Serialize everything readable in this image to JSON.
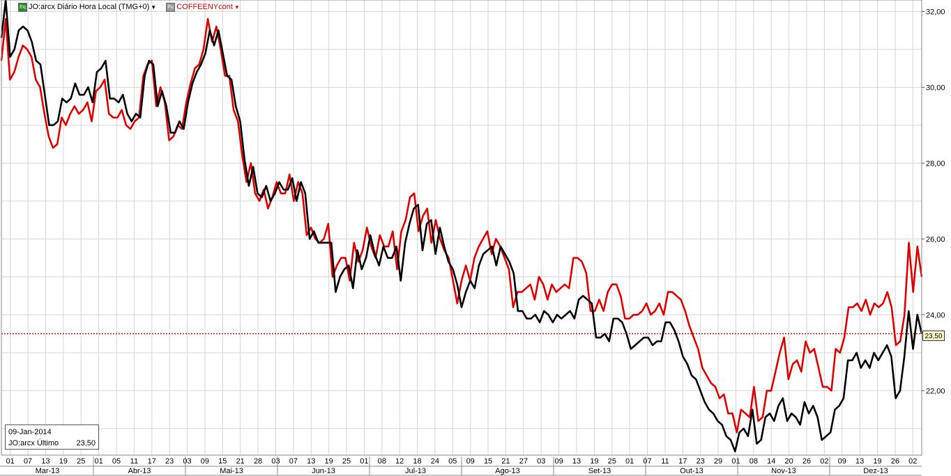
{
  "legend": {
    "series1_icon": "green-chart-icon",
    "series1_label": "JO:arcx Diário Hora Local (TMG+0)",
    "series2_icon": "grey-chart-icon",
    "series2_label": "COFFEENYcont",
    "series1_color": "#000000",
    "series2_color": "#dd0000"
  },
  "info_box": {
    "date": "09-Jan-2014",
    "label": "JO:arcx Último",
    "value": "23,50"
  },
  "price_tag": "23,50",
  "chart_data": {
    "type": "line",
    "title": "",
    "ylim": [
      20.3,
      32.3
    ],
    "y_ticks": [
      "22,00",
      "24,00",
      "26,00",
      "28,00",
      "30,00",
      "32,00"
    ],
    "y_tick_values": [
      22,
      24,
      26,
      28,
      30,
      32
    ],
    "grid": true,
    "reference_line": {
      "value": 23.5,
      "label": "23,50",
      "color": "#cc0000",
      "style": "dotted"
    },
    "x_day_ticks": [
      "01",
      "07",
      "13",
      "19",
      "25",
      "01",
      "05",
      "11",
      "17",
      "23",
      "03",
      "09",
      "15",
      "21",
      "28",
      "03",
      "07",
      "13",
      "19",
      "25",
      "01",
      "08",
      "12",
      "18",
      "24",
      "05",
      "09",
      "15",
      "21",
      "27",
      "03",
      "09",
      "13",
      "19",
      "25",
      "01",
      "07",
      "11",
      "17",
      "23",
      "29",
      "01",
      "08",
      "14",
      "20",
      "26",
      "02",
      "09",
      "13",
      "19",
      "26",
      "02"
    ],
    "x_month_labels": [
      "Mar-13",
      "Abr-13",
      "Mai-13",
      "Jun-13",
      "Jul-13",
      "Ago-13",
      "Set-13",
      "Out-13",
      "Nov-13",
      "Dez-13"
    ],
    "series": [
      {
        "name": "JO:arcx",
        "color": "#000000",
        "values": [
          31.3,
          32.3,
          30.8,
          31.0,
          31.5,
          31.6,
          31.5,
          31.2,
          30.7,
          30.6,
          29.8,
          29.0,
          29.0,
          29.1,
          29.7,
          29.6,
          29.7,
          30.1,
          29.8,
          29.8,
          30.0,
          29.6,
          30.4,
          30.5,
          30.7,
          29.7,
          29.7,
          29.6,
          29.8,
          29.3,
          29.1,
          29.3,
          29.2,
          30.3,
          30.7,
          30.6,
          29.5,
          29.9,
          29.5,
          28.8,
          28.8,
          29.1,
          28.9,
          29.6,
          30.1,
          30.4,
          30.6,
          30.9,
          31.5,
          31.1,
          31.5,
          30.9,
          30.3,
          30.2,
          29.5,
          29.1,
          28.1,
          27.4,
          27.9,
          27.2,
          27.1,
          27.4,
          27.0,
          27.2,
          27.5,
          27.3,
          27.3,
          27.6,
          27.0,
          27.5,
          27.2,
          26.0,
          26.2,
          25.9,
          25.9,
          25.9,
          25.9,
          24.6,
          25.0,
          25.2,
          25.3,
          24.7,
          25.7,
          25.2,
          25.5,
          26.1,
          25.6,
          25.3,
          25.8,
          25.5,
          25.5,
          25.8,
          24.9,
          25.9,
          26.4,
          26.8,
          26.9,
          25.7,
          26.4,
          26.5,
          25.6,
          26.3,
          25.8,
          25.4,
          25.2,
          24.8,
          24.2,
          24.6,
          24.9,
          24.7,
          25.3,
          25.6,
          25.7,
          25.8,
          25.3,
          25.8,
          25.6,
          25.4,
          25.1,
          24.1,
          24.1,
          23.9,
          23.9,
          24.0,
          23.8,
          24.1,
          24.0,
          23.8,
          24.0,
          23.9,
          24.0,
          24.1,
          23.9,
          24.4,
          24.5,
          24.4,
          24.3,
          23.4,
          23.4,
          23.5,
          23.3,
          23.9,
          23.9,
          23.8,
          23.5,
          23.1,
          23.2,
          23.3,
          23.4,
          23.4,
          23.2,
          23.3,
          23.3,
          23.8,
          23.8,
          23.6,
          23.3,
          22.9,
          22.7,
          22.4,
          22.3,
          22.0,
          21.7,
          21.5,
          21.4,
          21.2,
          21.1,
          20.8,
          20.7,
          20.4,
          20.9,
          21.0,
          20.8,
          21.5,
          20.6,
          20.7,
          21.3,
          21.4,
          21.2,
          21.6,
          21.8,
          21.2,
          21.4,
          21.3,
          21.1,
          21.7,
          21.4,
          21.6,
          21.3,
          20.7,
          20.8,
          20.9,
          21.5,
          21.6,
          21.8,
          22.8,
          22.8,
          23.0,
          22.6,
          22.8,
          22.6,
          23.0,
          22.8,
          23.0,
          23.2,
          22.9,
          21.8,
          22.0,
          22.9,
          24.1,
          23.1,
          24.0,
          23.5
        ]
      },
      {
        "name": "COFFEENYcont",
        "color": "#dd0000",
        "values": [
          30.7,
          31.8,
          30.2,
          30.4,
          30.8,
          31.1,
          31.0,
          30.8,
          30.2,
          30.0,
          29.3,
          28.7,
          28.4,
          28.5,
          29.2,
          29.0,
          29.3,
          29.5,
          29.3,
          29.4,
          29.6,
          29.1,
          29.9,
          30.0,
          30.2,
          29.3,
          29.2,
          29.2,
          29.4,
          29.0,
          28.9,
          29.1,
          29.2,
          30.3,
          30.6,
          30.7,
          29.5,
          30.0,
          29.6,
          28.6,
          28.7,
          29.0,
          28.9,
          29.6,
          30.1,
          30.5,
          30.6,
          31.0,
          31.8,
          31.2,
          31.6,
          31.0,
          30.3,
          30.3,
          29.4,
          29.1,
          28.2,
          27.5,
          28.0,
          27.2,
          27.0,
          27.3,
          26.8,
          27.1,
          27.5,
          27.2,
          27.2,
          27.7,
          27.0,
          27.5,
          27.2,
          26.1,
          26.3,
          26.0,
          25.9,
          26.0,
          26.4,
          25.0,
          25.3,
          25.5,
          25.5,
          24.9,
          25.9,
          25.4,
          25.7,
          26.3,
          25.8,
          25.5,
          26.1,
          25.8,
          25.8,
          26.2,
          25.2,
          26.2,
          26.5,
          27.1,
          27.2,
          26.2,
          26.6,
          26.8,
          25.9,
          26.5,
          26.0,
          25.7,
          25.5,
          24.9,
          24.3,
          24.9,
          25.3,
          24.9,
          25.5,
          25.8,
          26.0,
          26.2,
          25.6,
          26.0,
          25.8,
          25.5,
          25.2,
          24.2,
          24.6,
          24.6,
          24.7,
          24.8,
          24.4,
          25.0,
          24.8,
          24.4,
          24.8,
          24.6,
          24.7,
          24.8,
          24.7,
          25.5,
          25.5,
          25.4,
          25.1,
          24.1,
          24.1,
          24.4,
          24.1,
          24.6,
          24.8,
          24.8,
          24.5,
          23.9,
          23.9,
          24.0,
          24.0,
          24.1,
          24.3,
          24.0,
          24.1,
          24.3,
          24.0,
          24.6,
          24.6,
          24.5,
          24.4,
          24.1,
          23.7,
          23.4,
          23.1,
          22.6,
          22.4,
          22.2,
          22.1,
          21.8,
          21.9,
          21.4,
          21.4,
          20.9,
          21.5,
          21.4,
          21.3,
          22.1,
          21.2,
          21.3,
          22.0,
          22.0,
          22.5,
          23.0,
          23.4,
          22.3,
          22.7,
          22.8,
          22.5,
          23.3,
          23.0,
          23.1,
          22.6,
          22.1,
          22.1,
          22.0,
          23.1,
          23.0,
          23.4,
          24.2,
          24.2,
          24.3,
          24.1,
          24.4,
          24.0,
          24.3,
          24.2,
          24.3,
          24.6,
          24.2,
          23.2,
          23.3,
          24.0,
          25.9,
          24.6,
          25.8,
          25.0
        ]
      }
    ]
  }
}
